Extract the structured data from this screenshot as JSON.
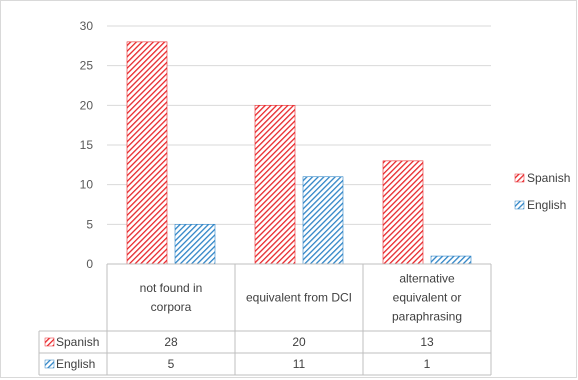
{
  "chart_data": {
    "type": "bar",
    "categories": [
      "not found in corpora",
      "equivalent from DCI",
      "alternative equivalent or paraphrasing"
    ],
    "category_lines": [
      [
        "not found in",
        "corpora"
      ],
      [
        "equivalent from DCI"
      ],
      [
        "alternative",
        "equivalent or",
        "paraphrasing"
      ]
    ],
    "series": [
      {
        "name": "Spanish",
        "values": [
          28,
          20,
          13
        ],
        "color": "#e8262a",
        "pattern": "diagonal-hatch"
      },
      {
        "name": "English",
        "values": [
          5,
          11,
          1
        ],
        "color": "#2e84c6",
        "pattern": "diagonal-hatch"
      }
    ],
    "ylim": [
      0,
      30
    ],
    "yticks": [
      "0",
      "5",
      "10",
      "15",
      "20",
      "25",
      "30"
    ],
    "grid": true,
    "legend_position": "right",
    "data_table": true,
    "title": "",
    "xlabel": "",
    "ylabel": ""
  }
}
